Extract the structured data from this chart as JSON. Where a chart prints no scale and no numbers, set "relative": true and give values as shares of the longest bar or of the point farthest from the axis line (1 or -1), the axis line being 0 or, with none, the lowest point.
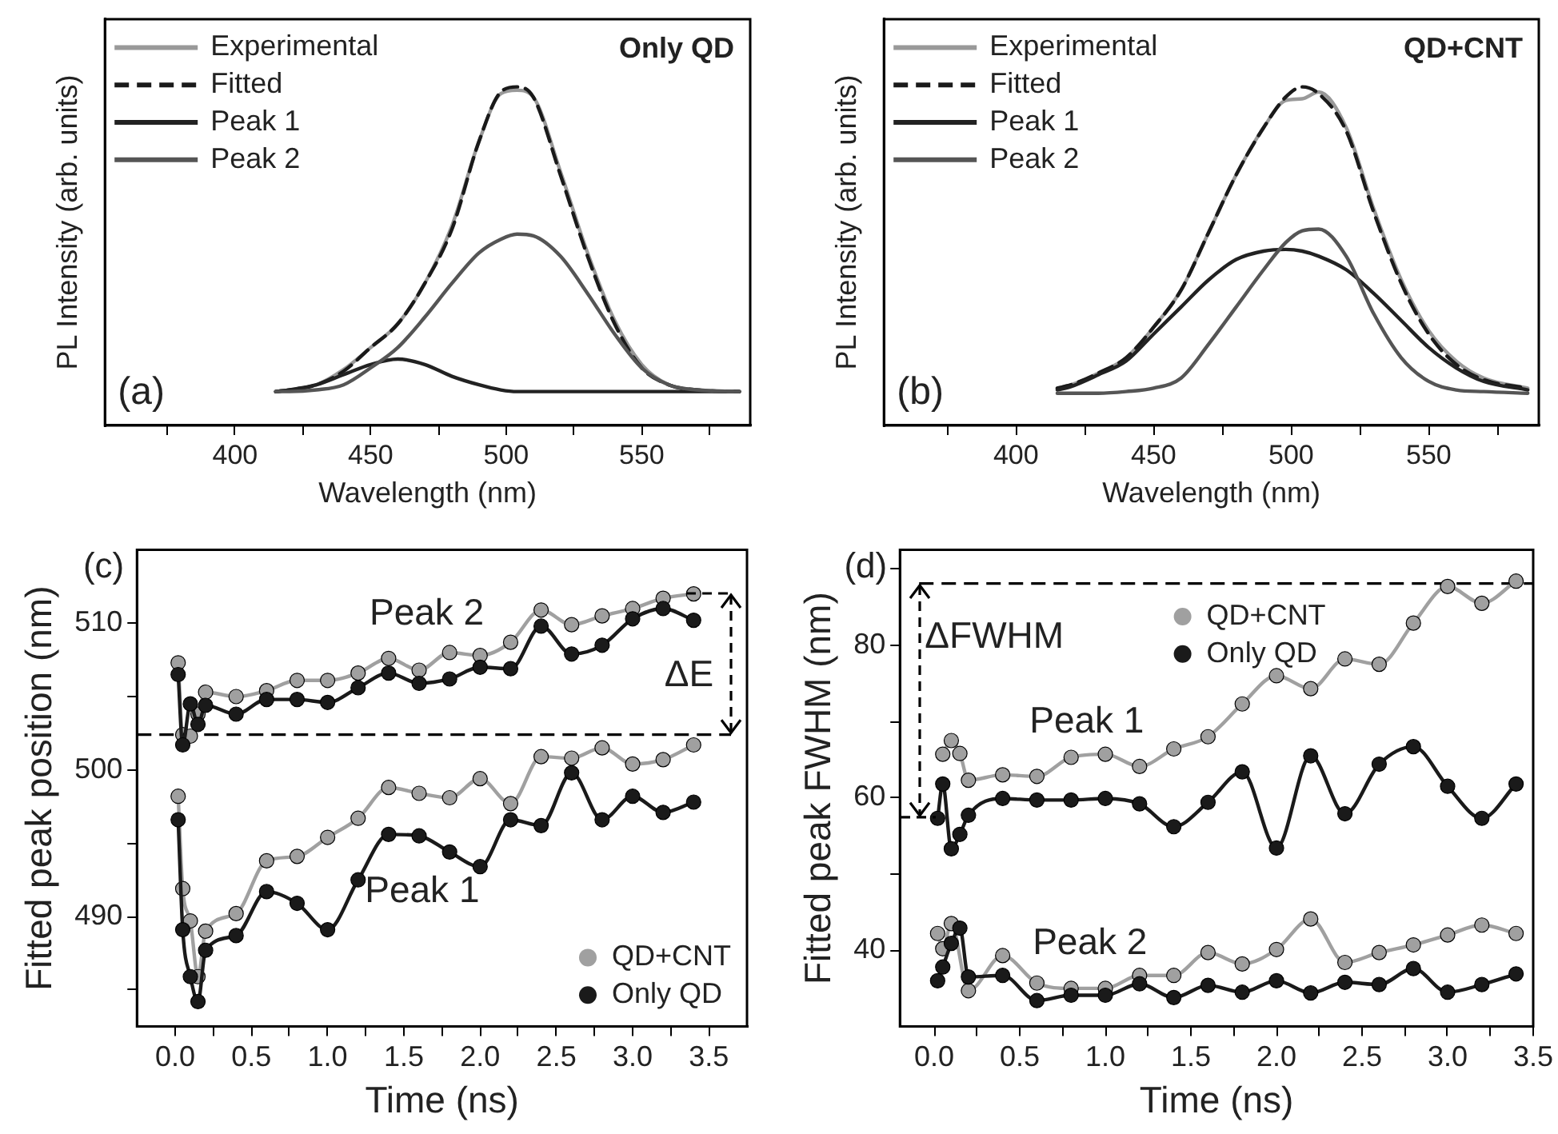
{
  "chart_data": [
    {
      "type": "line",
      "relative": true,
      "marker": "none",
      "legend": "top left",
      "xlabel": "Wavelength (nm)",
      "ylabel": "PL Intensity (arb. units)",
      "xlim": [
        352,
        590
      ],
      "xticks": [
        {
          "value": 375,
          "label": null
        },
        400,
        {
          "value": 425,
          "label": null
        },
        450,
        {
          "value": 475,
          "label": null
        },
        500,
        {
          "value": 525,
          "label": null
        },
        550,
        {
          "value": 575,
          "label": null
        }
      ],
      "x": [
        415,
        420,
        430,
        440,
        450,
        460,
        470,
        480,
        490,
        498,
        504,
        510,
        520,
        530,
        540,
        550,
        560,
        570,
        586
      ],
      "annotations": [
        "(a)",
        "Only QD"
      ],
      "series": [
        {
          "name": "Experimental",
          "color": "#999999",
          "values": [
            0.1,
            0.105,
            0.12,
            0.165,
            0.23,
            0.3,
            0.42,
            0.59,
            0.84,
            0.98,
            0.99,
            0.97,
            0.75,
            0.51,
            0.31,
            0.18,
            0.12,
            0.105,
            0.1
          ]
        },
        {
          "name": "Fitted",
          "color": "#1a1a1a",
          "line_style": "dashed",
          "values": [
            0.1,
            0.105,
            0.12,
            0.16,
            0.23,
            0.3,
            0.42,
            0.58,
            0.84,
            0.985,
            1,
            0.97,
            0.74,
            0.5,
            0.3,
            0.17,
            0.12,
            0.105,
            0.1
          ]
        },
        {
          "name": "Peak 1",
          "color": "#222222",
          "values": [
            0.1,
            0.105,
            0.12,
            0.15,
            0.18,
            0.196,
            0.18,
            0.145,
            0.12,
            0.105,
            0.1,
            0.1,
            0.1,
            0.1,
            0.1,
            0.1,
            0.1,
            0.1,
            0.1
          ]
        },
        {
          "name": "Peak 2",
          "color": "#555555",
          "values": [
            0.1,
            0.1,
            0.105,
            0.12,
            0.17,
            0.23,
            0.32,
            0.42,
            0.51,
            0.55,
            0.565,
            0.56,
            0.5,
            0.39,
            0.27,
            0.17,
            0.12,
            0.105,
            0.1
          ]
        }
      ]
    },
    {
      "type": "line",
      "relative": true,
      "marker": "none",
      "legend": "top left",
      "xlabel": "Wavelength (nm)",
      "ylabel": "PL Intensity (arb. units)",
      "xlim": [
        352,
        590
      ],
      "xticks": [
        {
          "value": 375,
          "label": null
        },
        400,
        {
          "value": 425,
          "label": null
        },
        450,
        {
          "value": 475,
          "label": null
        },
        500,
        {
          "value": 525,
          "label": null
        },
        550,
        {
          "value": 575,
          "label": null
        }
      ],
      "x": [
        415,
        420,
        430,
        440,
        450,
        460,
        470,
        480,
        490,
        498,
        504,
        510,
        520,
        530,
        540,
        550,
        560,
        570,
        586
      ],
      "annotations": [
        "(b)",
        "QD+CNT"
      ],
      "series": [
        {
          "name": "Experimental",
          "color": "#999999",
          "values": [
            0.11,
            0.12,
            0.155,
            0.2,
            0.29,
            0.4,
            0.57,
            0.74,
            0.88,
            0.96,
            0.965,
            0.985,
            0.88,
            0.64,
            0.43,
            0.28,
            0.19,
            0.14,
            0.11
          ]
        },
        {
          "name": "Fitted",
          "color": "#1a1a1a",
          "line_style": "dashed",
          "values": [
            0.11,
            0.12,
            0.155,
            0.2,
            0.29,
            0.4,
            0.57,
            0.74,
            0.88,
            0.97,
            1,
            0.98,
            0.87,
            0.63,
            0.42,
            0.27,
            0.18,
            0.135,
            0.11
          ]
        },
        {
          "name": "Peak 1",
          "color": "#222222",
          "values": [
            0.105,
            0.115,
            0.15,
            0.19,
            0.27,
            0.35,
            0.43,
            0.49,
            0.515,
            0.52,
            0.515,
            0.5,
            0.46,
            0.39,
            0.31,
            0.23,
            0.17,
            0.13,
            0.105
          ]
        },
        {
          "name": "Peak 2",
          "color": "#555555",
          "values": [
            0.095,
            0.095,
            0.095,
            0.1,
            0.11,
            0.14,
            0.24,
            0.35,
            0.46,
            0.54,
            0.575,
            0.58,
            0.5,
            0.33,
            0.2,
            0.13,
            0.105,
            0.1,
            0.095
          ]
        }
      ]
    },
    {
      "type": "line",
      "marker": "circle",
      "legend": "bottom right",
      "xlabel": "Time (ns)",
      "ylabel": "Fitted peak position (nm)",
      "xlim": [
        -0.25,
        3.75
      ],
      "ylim": [
        482.5,
        515
      ],
      "xticks": [
        {
          "value": 0,
          "label": "0.0"
        },
        {
          "value": 0.25,
          "label": null
        },
        0.5,
        {
          "value": 0.75,
          "label": null
        },
        {
          "value": 1,
          "label": "1.0"
        },
        {
          "value": 1.25,
          "label": null
        },
        1.5,
        {
          "value": 1.75,
          "label": null
        },
        {
          "value": 2,
          "label": "2.0"
        },
        {
          "value": 2.25,
          "label": null
        },
        2.5,
        {
          "value": 2.75,
          "label": null
        },
        {
          "value": 3,
          "label": "3.0"
        },
        {
          "value": 3.25,
          "label": null
        },
        3.5
      ],
      "yticks": [
        {
          "value": 485,
          "label": null
        },
        490,
        {
          "value": 495,
          "label": null
        },
        500,
        {
          "value": 505,
          "label": null
        },
        510
      ],
      "x": [
        0.02,
        0.05,
        0.1,
        0.15,
        0.2,
        0.4,
        0.6,
        0.8,
        1.0,
        1.2,
        1.4,
        1.6,
        1.8,
        2.0,
        2.2,
        2.4,
        2.6,
        2.8,
        3.0,
        3.2,
        3.4
      ],
      "ref_lines": [
        {
          "axis": "y",
          "value": 502.4,
          "line_style": "dashed",
          "color": "#000000"
        }
      ],
      "annotations": [
        "(c)",
        "Peak 2",
        "Peak 1",
        "ΔE"
      ],
      "series": [
        {
          "name": "QD+CNT",
          "color": "#a0a0a0",
          "values": [
            507.3,
            502.4,
            502.3,
            503.8,
            505.3,
            505.0,
            505.4,
            506.1,
            506.1,
            506.6,
            507.6,
            506.8,
            508.0,
            507.8,
            508.7,
            510.9,
            509.9,
            510.5,
            511.0,
            511.7,
            512.0
          ]
        },
        {
          "name": "Only QD",
          "color": "#1a1a1a",
          "values": [
            506.5,
            501.7,
            504.5,
            503.1,
            504.4,
            503.8,
            504.8,
            504.8,
            504.6,
            505.6,
            506.6,
            505.9,
            506.2,
            507.0,
            506.9,
            509.8,
            507.9,
            508.5,
            510.3,
            511.0,
            510.2
          ]
        },
        {
          "color": "#a0a0a0",
          "values": [
            498.2,
            491.9,
            489.7,
            485.9,
            489.0,
            490.2,
            493.8,
            494.1,
            495.4,
            496.7,
            498.8,
            498.4,
            498.1,
            499.4,
            497.7,
            500.9,
            500.8,
            501.5,
            500.4,
            500.7,
            501.7
          ]
        },
        {
          "color": "#1a1a1a",
          "values": [
            496.6,
            489.1,
            485.9,
            484.2,
            487.7,
            488.7,
            491.7,
            490.9,
            489.1,
            492.5,
            495.6,
            495.5,
            494.4,
            493.4,
            496.6,
            496.2,
            499.8,
            496.6,
            498.2,
            497.1,
            497.8
          ]
        }
      ]
    },
    {
      "type": "line",
      "marker": "circle",
      "legend": "top",
      "xlabel": "Time (ns)",
      "ylabel": "Fitted peak FWHM (nm)",
      "xlim": [
        -0.2,
        3.5
      ],
      "ylim": [
        30,
        92.5
      ],
      "xticks": [
        {
          "value": 0,
          "label": "0.0"
        },
        {
          "value": 0.25,
          "label": null
        },
        0.5,
        {
          "value": 0.75,
          "label": null
        },
        {
          "value": 1,
          "label": "1.0"
        },
        {
          "value": 1.25,
          "label": null
        },
        1.5,
        {
          "value": 1.75,
          "label": null
        },
        {
          "value": 2,
          "label": "2.0"
        },
        {
          "value": 2.25,
          "label": null
        },
        2.5,
        {
          "value": 2.75,
          "label": null
        },
        {
          "value": 3,
          "label": "3.0"
        },
        {
          "value": 3.25,
          "label": null
        },
        3.5
      ],
      "yticks": [
        40,
        {
          "value": 50,
          "label": null
        },
        60,
        {
          "value": 70,
          "label": null
        },
        80,
        {
          "value": 90,
          "label": null
        }
      ],
      "x": [
        0.02,
        0.05,
        0.1,
        0.15,
        0.2,
        0.4,
        0.6,
        0.8,
        1.0,
        1.2,
        1.4,
        1.6,
        1.8,
        2.0,
        2.2,
        2.4,
        2.6,
        2.8,
        3.0,
        3.2,
        3.4
      ],
      "ref_lines": [
        {
          "axis": "y",
          "value": 88.1,
          "line_style": "dashed",
          "color": "#000000"
        }
      ],
      "annotations": [
        "(d)",
        "Peak 1",
        "Peak 2",
        "ΔFWHM"
      ],
      "series": [
        {
          "name": "QD+CNT",
          "color": "#a0a0a0",
          "x": [
            0.05,
            0.1,
            0.15,
            0.2,
            0.4,
            0.6,
            0.8,
            1.0,
            1.2,
            1.4,
            1.6,
            1.8,
            2.0,
            2.2,
            2.4,
            2.6,
            2.8,
            3.0,
            3.2,
            3.4
          ],
          "values": [
            65.7,
            67.5,
            65.8,
            62.3,
            63.0,
            62.8,
            65.3,
            65.7,
            64.1,
            66.4,
            68.0,
            72.3,
            76.0,
            74.3,
            78.2,
            77.5,
            82.9,
            87.7,
            85.5,
            88.4
          ]
        },
        {
          "name": "Only QD",
          "color": "#1a1a1a",
          "values": [
            57.3,
            61.8,
            53.3,
            55.2,
            57.7,
            59.9,
            59.7,
            59.7,
            59.9,
            59.2,
            56.2,
            59.4,
            63.4,
            53.4,
            65.5,
            57.9,
            64.4,
            66.7,
            61.5,
            57.3,
            61.8
          ]
        },
        {
          "color": "#a0a0a0",
          "x": [
            0.02,
            0.05,
            0.1,
            0.2,
            0.4,
            0.6,
            0.8,
            1.0,
            1.2,
            1.4,
            1.6,
            1.8,
            2.0,
            2.2,
            2.4,
            2.6,
            2.8,
            3.0,
            3.2,
            3.4
          ],
          "values": [
            42.2,
            40.2,
            43.5,
            34.7,
            39.3,
            35.7,
            35.0,
            35.0,
            36.7,
            36.7,
            39.7,
            38.2,
            40.1,
            44.1,
            38.4,
            39.7,
            40.7,
            42.0,
            43.3,
            42.2
          ]
        },
        {
          "color": "#1a1a1a",
          "values": [
            36.0,
            37.8,
            40.9,
            42.9,
            36.5,
            36.7,
            33.4,
            34.1,
            34.1,
            35.6,
            33.8,
            35.4,
            34.5,
            36.0,
            34.4,
            35.8,
            35.5,
            37.6,
            34.5,
            35.5,
            36.9
          ]
        }
      ]
    }
  ]
}
